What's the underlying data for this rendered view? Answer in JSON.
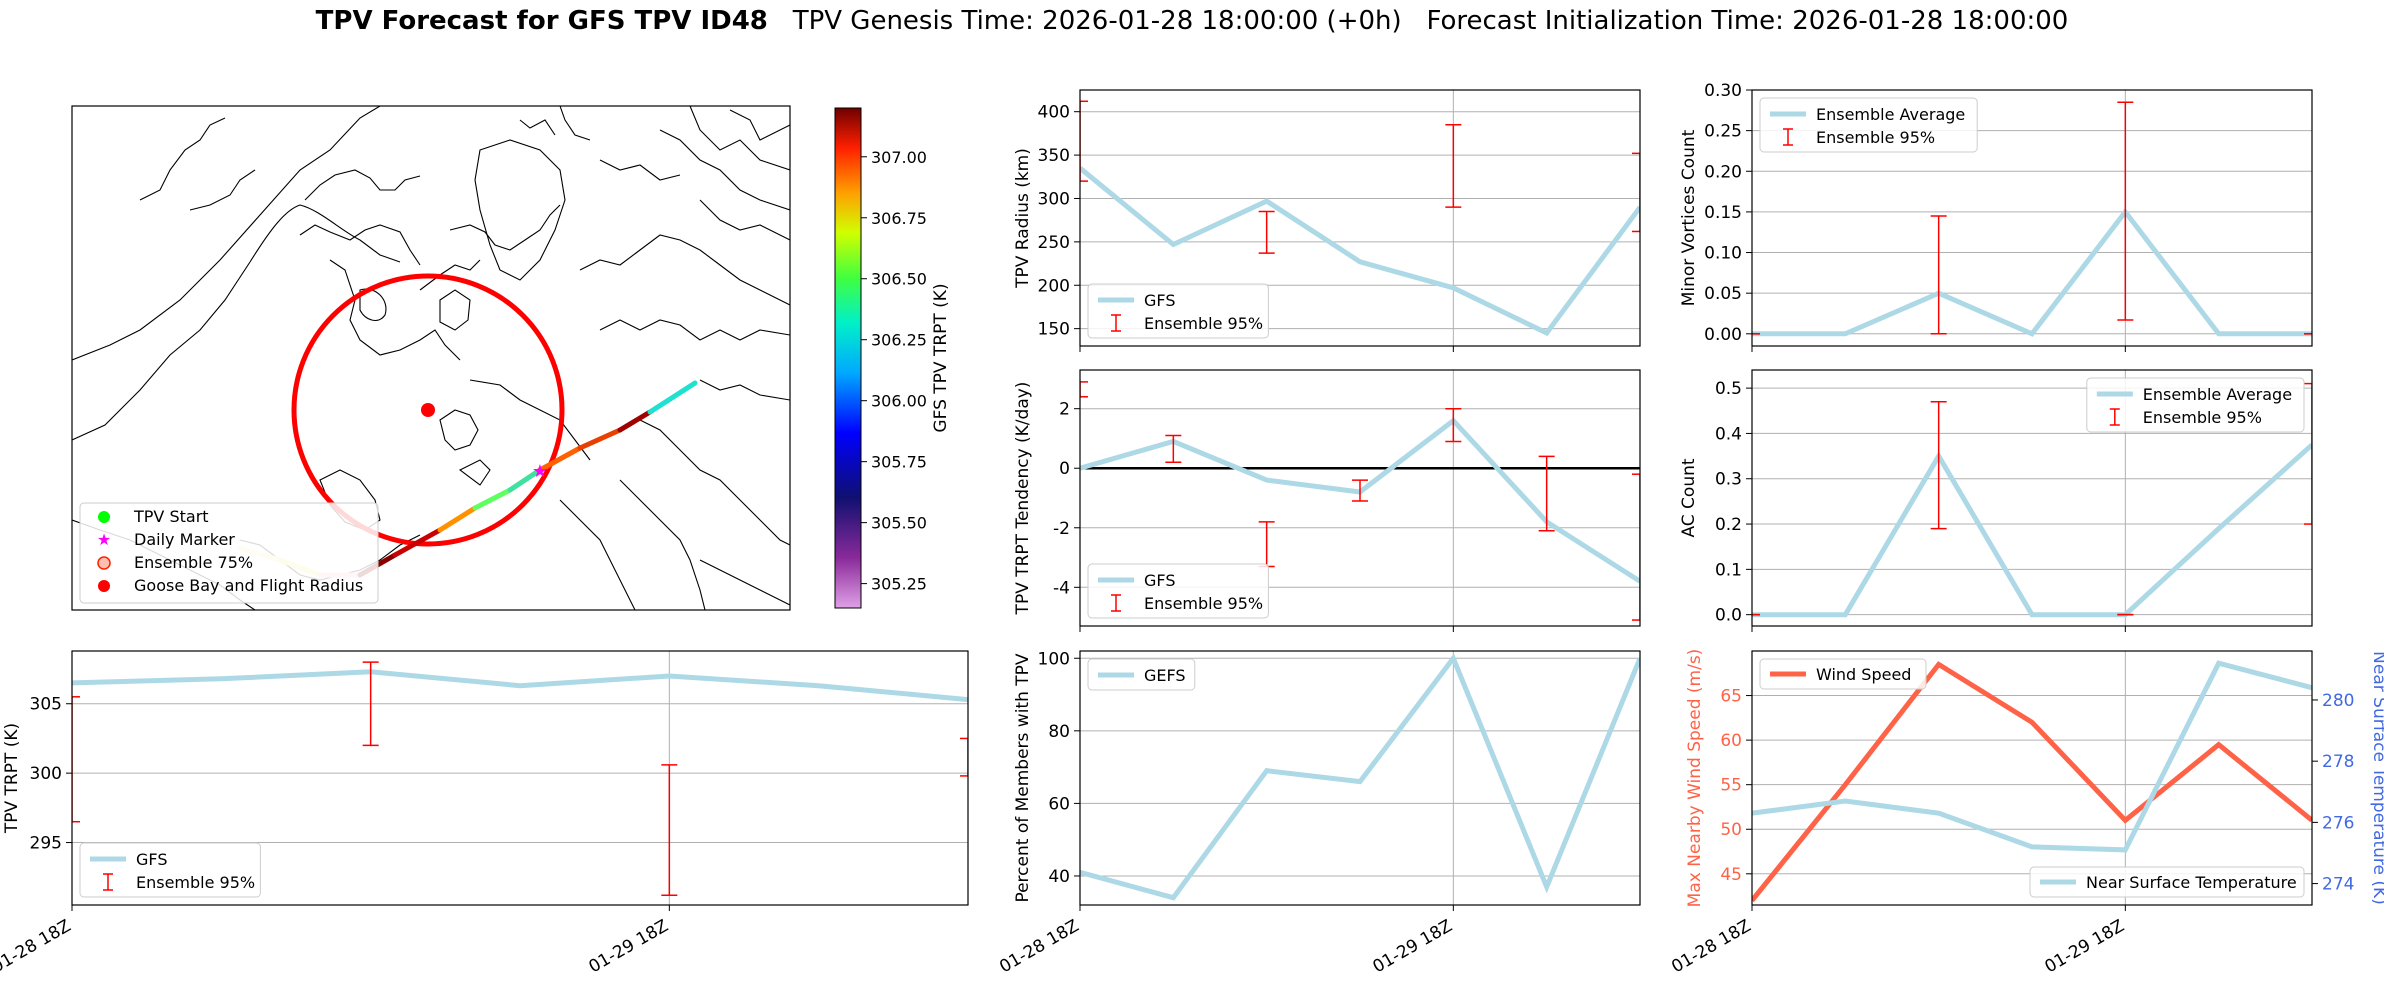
{
  "header": {
    "title_bold": "TPV Forecast for GFS TPV ID48",
    "title_rest": "TPV Genesis Time: 2026-01-28 18:00:00 (+0h)   Forecast Initialization Time: 2026-01-28 18:00:00"
  },
  "colors": {
    "gfs_line": "#add8e6",
    "ensemble_bar": "#ff0000",
    "wind_speed": "#ff6347",
    "temperature_axis": "#4169e1",
    "grid": "#b0b0b0"
  },
  "map": {
    "colorbar_label": "GFS TPV TRPT (K)",
    "colorbar_ticks": [
      "307.00",
      "306.75",
      "306.50",
      "306.25",
      "306.00",
      "305.75",
      "305.50",
      "305.25"
    ],
    "colorbar_range": [
      305.15,
      307.2
    ],
    "legend": [
      {
        "label": "TPV Start",
        "marker": "green-dot-icon",
        "color": "#00ff00"
      },
      {
        "label": "Daily Marker",
        "marker": "magenta-star-icon",
        "color": "#ff00ff"
      },
      {
        "label": "Ensemble 75%",
        "marker": "ensemble-circle-icon",
        "color": "#ff6347"
      },
      {
        "label": "Goose Bay and Flight Radius",
        "marker": "red-dot-icon",
        "color": "#ff0000"
      }
    ]
  },
  "chart_data": [
    {
      "id": "trpt",
      "type": "line",
      "ylabel": "TPV TRPT (K)",
      "xticklabels": [
        "01-28 18Z",
        "01-29 18Z"
      ],
      "x_hours": [
        0,
        6,
        12,
        18,
        24,
        30,
        36
      ],
      "xlim": [
        0,
        36
      ],
      "ylim": [
        290.5,
        308.8
      ],
      "yticks": [
        295,
        300,
        305
      ],
      "series": [
        {
          "name": "GFS",
          "values": [
            306.5,
            306.8,
            307.3,
            306.3,
            307.0,
            306.3,
            305.3
          ]
        }
      ],
      "error_bars": {
        "name": "Ensemble 95%",
        "x_hours": [
          0,
          12,
          24,
          36
        ],
        "low": [
          296.5,
          302.0,
          291.2,
          299.8
        ],
        "high": [
          305.5,
          308.0,
          300.6,
          302.5
        ]
      },
      "legend": [
        "GFS",
        "Ensemble 95%"
      ]
    },
    {
      "id": "radius",
      "type": "line",
      "ylabel": "TPV Radius (km)",
      "x_hours": [
        0,
        6,
        12,
        18,
        24,
        30,
        36
      ],
      "xlim": [
        0,
        36
      ],
      "ylim": [
        130,
        425
      ],
      "yticks": [
        150,
        200,
        250,
        300,
        350,
        400
      ],
      "series": [
        {
          "name": "GFS",
          "values": [
            335,
            247,
            297,
            227,
            197,
            145,
            290
          ]
        }
      ],
      "error_bars": {
        "name": "Ensemble 95%",
        "x_hours": [
          0,
          12,
          24,
          36
        ],
        "low": [
          320,
          237,
          290,
          262
        ],
        "high": [
          412,
          285,
          385,
          352
        ]
      },
      "legend": [
        "GFS",
        "Ensemble 95%"
      ]
    },
    {
      "id": "tendency",
      "type": "line",
      "ylabel": "TPV TRPT Tendency (K/day)",
      "x_hours": [
        0,
        6,
        12,
        18,
        24,
        30,
        36
      ],
      "xlim": [
        0,
        36
      ],
      "ylim": [
        -5.3,
        3.3
      ],
      "yticks": [
        -4,
        -2,
        0,
        2
      ],
      "zero_line": true,
      "series": [
        {
          "name": "GFS",
          "values": [
            0.0,
            0.9,
            -0.4,
            -0.8,
            1.6,
            -1.8,
            -3.8
          ]
        }
      ],
      "error_bars": {
        "name": "Ensemble 95%",
        "x_hours": [
          0,
          6,
          12,
          18,
          24,
          30,
          36
        ],
        "low": [
          2.4,
          0.2,
          -3.3,
          -1.1,
          0.9,
          -2.1,
          -5.1
        ],
        "high": [
          2.9,
          1.1,
          -1.8,
          -0.4,
          2.0,
          0.4,
          -0.2
        ]
      },
      "legend": [
        "GFS",
        "Ensemble 95%"
      ]
    },
    {
      "id": "members",
      "type": "line",
      "ylabel": "Percent of Members with TPV",
      "x_hours": [
        0,
        6,
        12,
        18,
        24,
        30,
        36
      ],
      "xlim": [
        0,
        36
      ],
      "ylim": [
        32,
        102
      ],
      "yticks": [
        40,
        60,
        80,
        100
      ],
      "xticklabels": [
        "01-28 18Z",
        "01-29 18Z"
      ],
      "series": [
        {
          "name": "GEFS",
          "values": [
            41,
            34,
            69,
            66,
            100,
            37,
            100
          ]
        }
      ],
      "legend": [
        "GEFS"
      ]
    },
    {
      "id": "minor",
      "type": "line",
      "ylabel": "Minor Vortices Count",
      "x_hours": [
        0,
        6,
        12,
        18,
        24,
        30,
        36
      ],
      "xlim": [
        0,
        36
      ],
      "ylim": [
        -0.015,
        0.3
      ],
      "yticks": [
        0.0,
        0.05,
        0.1,
        0.15,
        0.2,
        0.25,
        0.3
      ],
      "yticklabels": [
        "0.00",
        "0.05",
        "0.10",
        "0.15",
        "0.20",
        "0.25",
        "0.30"
      ],
      "series": [
        {
          "name": "Ensemble Average",
          "values": [
            0.0,
            0.0,
            0.05,
            0.0,
            0.15,
            0.0,
            0.0
          ]
        }
      ],
      "error_bars": {
        "name": "Ensemble 95%",
        "x_hours": [
          0,
          12,
          24,
          36
        ],
        "low": [
          0.0,
          0.0,
          0.017,
          0.0
        ],
        "high": [
          0.0,
          0.145,
          0.285,
          0.0
        ]
      },
      "legend": [
        "Ensemble Average",
        "Ensemble 95%"
      ]
    },
    {
      "id": "ac",
      "type": "line",
      "ylabel": "AC Count",
      "x_hours": [
        0,
        6,
        12,
        18,
        24,
        30,
        36
      ],
      "xlim": [
        0,
        36
      ],
      "ylim": [
        -0.025,
        0.54
      ],
      "yticks": [
        0.0,
        0.1,
        0.2,
        0.3,
        0.4,
        0.5
      ],
      "yticklabels": [
        "0.0",
        "0.1",
        "0.2",
        "0.3",
        "0.4",
        "0.5"
      ],
      "series": [
        {
          "name": "Ensemble Average",
          "values": [
            0.0,
            0.0,
            0.35,
            0.0,
            0.0,
            0.19,
            0.375
          ]
        }
      ],
      "error_bars": {
        "name": "Ensemble 95%",
        "x_hours": [
          0,
          12,
          24,
          36
        ],
        "low": [
          0.0,
          0.19,
          0.0,
          0.2
        ],
        "high": [
          0.0,
          0.47,
          0.0,
          0.51
        ]
      },
      "legend": [
        "Ensemble Average",
        "Ensemble 95%"
      ]
    },
    {
      "id": "wind",
      "type": "line",
      "ylabel": "Max Nearby Wind Speed (m/s)",
      "y2label": "Near Surface Temperature (K)",
      "x_hours": [
        0,
        6,
        12,
        18,
        24,
        30,
        36
      ],
      "xlim": [
        0,
        36
      ],
      "xticklabels": [
        "01-28 18Z",
        "01-29 18Z"
      ],
      "ylim": [
        41.5,
        70
      ],
      "yticks": [
        45,
        50,
        55,
        60,
        65
      ],
      "y2lim": [
        273.3,
        281.6
      ],
      "y2ticks": [
        274,
        276,
        278,
        280
      ],
      "series": [
        {
          "name": "Wind Speed",
          "axis": "left",
          "values": [
            42,
            55,
            68.5,
            62,
            51,
            59.5,
            51
          ]
        },
        {
          "name": "Near Surface Temperature",
          "axis": "right",
          "values": [
            276.3,
            276.7,
            276.3,
            275.2,
            275.1,
            281.2,
            280.4
          ]
        }
      ],
      "legend": [
        "Wind Speed",
        "Near Surface Temperature"
      ]
    }
  ]
}
